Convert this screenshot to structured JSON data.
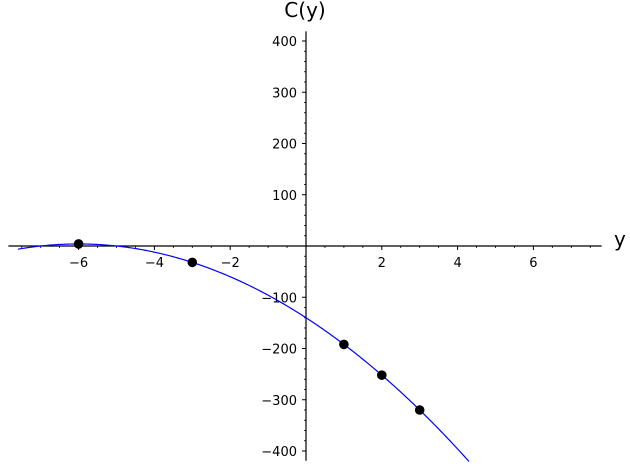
{
  "chart_data": {
    "type": "line",
    "title": "",
    "xlabel": "y",
    "ylabel": "C(y)",
    "xlim": [
      -7.8,
      7.8
    ],
    "ylim": [
      -415,
      415
    ],
    "x_ticks": [
      -6,
      -4,
      -2,
      2,
      4,
      6
    ],
    "x_tick_labels": [
      "−6",
      "−4",
      "−2",
      "2",
      "4",
      "6"
    ],
    "y_ticks": [
      -400,
      -300,
      -200,
      -100,
      100,
      200,
      300,
      400
    ],
    "y_tick_labels": [
      "−400",
      "−300",
      "−200",
      "−100",
      "100",
      "200",
      "300",
      "400"
    ],
    "grid": false,
    "series": [
      {
        "type": "curve",
        "color": "#0000ff",
        "function": "C(y) = -4*y^2 - 48*y - 140",
        "x_range": [
          -7.6,
          4.3
        ]
      },
      {
        "type": "scatter",
        "color": "#000000",
        "points": [
          {
            "x": -6,
            "y": 4
          },
          {
            "x": -3,
            "y": -32
          },
          {
            "x": 1,
            "y": -192
          },
          {
            "x": 2,
            "y": -252
          },
          {
            "x": 3,
            "y": -320
          }
        ]
      }
    ]
  }
}
